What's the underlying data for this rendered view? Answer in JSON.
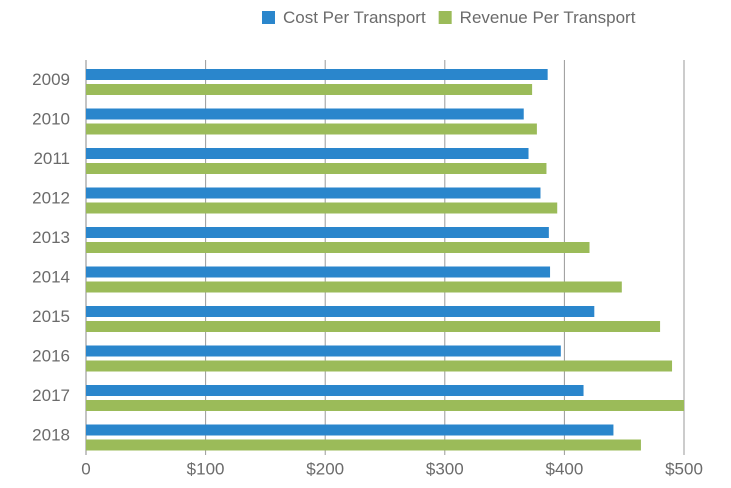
{
  "chart_data": {
    "type": "bar",
    "orientation": "horizontal",
    "categories": [
      "2009",
      "2010",
      "2011",
      "2012",
      "2013",
      "2014",
      "2015",
      "2016",
      "2017",
      "2018"
    ],
    "series": [
      {
        "name": "Cost Per Transport",
        "color": "#2a86cc",
        "values": [
          386,
          366,
          370,
          380,
          387,
          388,
          425,
          397,
          416,
          441
        ]
      },
      {
        "name": "Revenue Per Transport",
        "color": "#9bbb59",
        "values": [
          373,
          377,
          385,
          394,
          421,
          448,
          480,
          490,
          500,
          464
        ]
      }
    ],
    "xlim": [
      0,
      500
    ],
    "xticks": [
      0,
      {
        "value": 100,
        "label": "$100"
      },
      {
        "value": 200,
        "label": "$200"
      },
      {
        "value": 300,
        "label": "$300"
      },
      {
        "value": 400,
        "label": "$400"
      },
      {
        "value": 500,
        "label": "$500"
      }
    ],
    "grid": true,
    "legend": "top-right"
  }
}
